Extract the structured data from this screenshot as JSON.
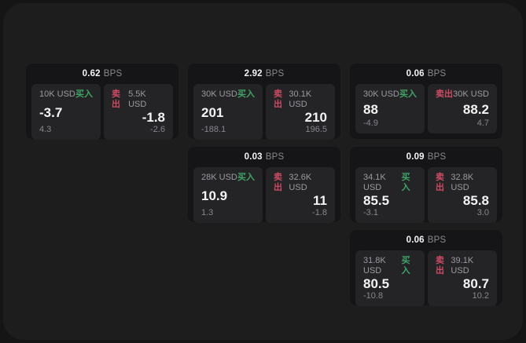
{
  "labels": {
    "buy": "买入",
    "sell": "卖出"
  },
  "colors": {
    "buy_green": "#3fa566",
    "sell_red": "#cc4b63",
    "panel_bg": "#1d1d1e",
    "card_bg": "#151517",
    "tile_bg": "#242427"
  },
  "cards": [
    {
      "bps_value": "0.62",
      "bps_unit": "BPS",
      "buy": {
        "amount": "10K USD",
        "price": "-3.7",
        "sub": "4.3"
      },
      "sell": {
        "amount": "5.5K USD",
        "price": "-1.8",
        "sub": "-2.6"
      }
    },
    {
      "bps_value": "2.92",
      "bps_unit": "BPS",
      "buy": {
        "amount": "30K USD",
        "price": "201",
        "sub": "-188.1"
      },
      "sell": {
        "amount": "30.1K USD",
        "price": "210",
        "sub": "196.5"
      }
    },
    {
      "bps_value": "0.06",
      "bps_unit": "BPS",
      "buy": {
        "amount": "30K USD",
        "price": "88",
        "sub": "-4.9"
      },
      "sell": {
        "amount": "30K USD",
        "price": "88.2",
        "sub": "4.7"
      }
    },
    {
      "bps_value": "0.03",
      "bps_unit": "BPS",
      "buy": {
        "amount": "28K USD",
        "price": "10.9",
        "sub": "1.3"
      },
      "sell": {
        "amount": "32.6K USD",
        "price": "11",
        "sub": "-1.8"
      }
    },
    {
      "bps_value": "0.09",
      "bps_unit": "BPS",
      "buy": {
        "amount": "34.1K USD",
        "price": "85.5",
        "sub": "-3.1"
      },
      "sell": {
        "amount": "32.8K USD",
        "price": "85.8",
        "sub": "3.0"
      }
    },
    {
      "bps_value": "0.06",
      "bps_unit": "BPS",
      "buy": {
        "amount": "31.8K USD",
        "price": "80.5",
        "sub": "-10.8"
      },
      "sell": {
        "amount": "39.1K USD",
        "price": "80.7",
        "sub": "10.2"
      }
    }
  ]
}
